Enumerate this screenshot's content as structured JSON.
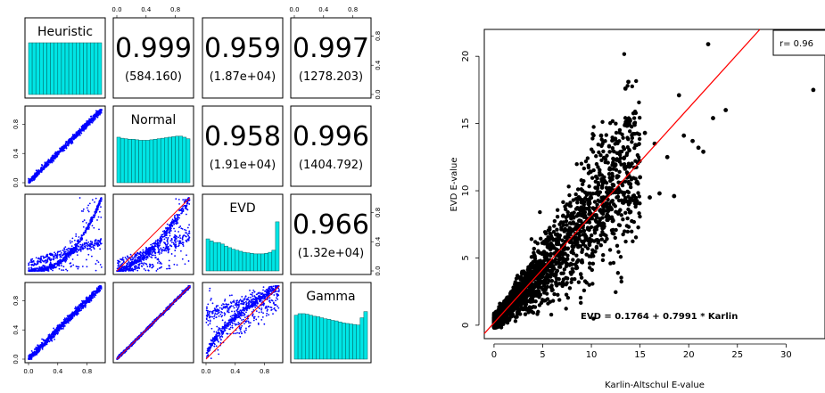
{
  "colors": {
    "histogram_fill": "#00e5e5",
    "histogram_stroke": "#006060",
    "scatter_points": "#0000ff",
    "fit_line": "#ff0000",
    "points_black": "#000000",
    "frame": "#000000"
  },
  "chart_data": [
    {
      "type": "scatter",
      "kind": "pairs_matrix",
      "variables": [
        "Heuristic",
        "Normal",
        "EVD",
        "Gamma"
      ],
      "axis_range": [
        0,
        1
      ],
      "x_ticks": [
        "0.0",
        "0.4",
        "0.8"
      ],
      "y_ticks": [
        "0.0",
        "0.4",
        "0.8"
      ],
      "correlations": [
        {
          "row": 0,
          "col": 1,
          "r": "0.999",
          "stat": "(584.160)"
        },
        {
          "row": 0,
          "col": 2,
          "r": "0.959",
          "stat": "(1.87e+04)"
        },
        {
          "row": 0,
          "col": 3,
          "r": "0.997",
          "stat": "(1278.203)"
        },
        {
          "row": 1,
          "col": 2,
          "r": "0.958",
          "stat": "(1.91e+04)"
        },
        {
          "row": 1,
          "col": 3,
          "r": "0.996",
          "stat": "(1404.792)"
        },
        {
          "row": 2,
          "col": 3,
          "r": "0.966",
          "stat": "(1.32e+04)"
        }
      ],
      "histograms": {
        "Heuristic": [
          1,
          1,
          1,
          1,
          1,
          1,
          1,
          1,
          1,
          1,
          1,
          1,
          1,
          1,
          1,
          1,
          1,
          1,
          1,
          1
        ],
        "Normal": [
          0.88,
          0.86,
          0.85,
          0.84,
          0.84,
          0.83,
          0.82,
          0.82,
          0.82,
          0.83,
          0.84,
          0.85,
          0.86,
          0.87,
          0.88,
          0.89,
          0.9,
          0.9,
          0.88,
          0.85
        ],
        "EVD": [
          0.62,
          0.58,
          0.55,
          0.55,
          0.52,
          0.48,
          0.45,
          0.42,
          0.4,
          0.38,
          0.36,
          0.35,
          0.34,
          0.33,
          0.33,
          0.33,
          0.34,
          0.36,
          0.4,
          0.95
        ],
        "Gamma": [
          0.85,
          0.88,
          0.88,
          0.87,
          0.85,
          0.83,
          0.82,
          0.8,
          0.78,
          0.77,
          0.75,
          0.74,
          0.72,
          0.7,
          0.69,
          0.68,
          0.67,
          0.66,
          0.8,
          0.92
        ]
      }
    },
    {
      "type": "scatter",
      "xlabel": "Karlin-Altschul E-value",
      "ylabel": "EVD E-value",
      "xlim": [
        -1,
        34
      ],
      "ylim": [
        -1,
        22
      ],
      "x_ticks": [
        0,
        5,
        10,
        15,
        20,
        25,
        30
      ],
      "y_ticks": [
        0,
        5,
        10,
        15,
        20
      ],
      "fit": {
        "intercept": 0.1764,
        "slope": 0.7991
      },
      "annotation": "EVD = 0.1764 + 0.7991 * Karlin",
      "legend_text": "r= 0.96",
      "legend_position": "top-right",
      "outliers": [
        [
          22.0,
          20.9
        ],
        [
          32.8,
          17.5
        ],
        [
          13.8,
          18.1
        ],
        [
          13.5,
          17.6
        ],
        [
          19.0,
          17.1
        ],
        [
          23.8,
          16.0
        ],
        [
          22.5,
          15.4
        ],
        [
          19.5,
          14.1
        ],
        [
          20.4,
          13.7
        ],
        [
          21.0,
          13.2
        ],
        [
          21.5,
          12.9
        ],
        [
          11.0,
          14.1
        ],
        [
          15.5,
          14.3
        ],
        [
          17.8,
          12.5
        ],
        [
          16.5,
          13.5
        ],
        [
          18.5,
          9.6
        ],
        [
          17.0,
          9.8
        ],
        [
          14.0,
          10.5
        ],
        [
          16.0,
          9.5
        ],
        [
          15.0,
          11.0
        ]
      ]
    }
  ]
}
